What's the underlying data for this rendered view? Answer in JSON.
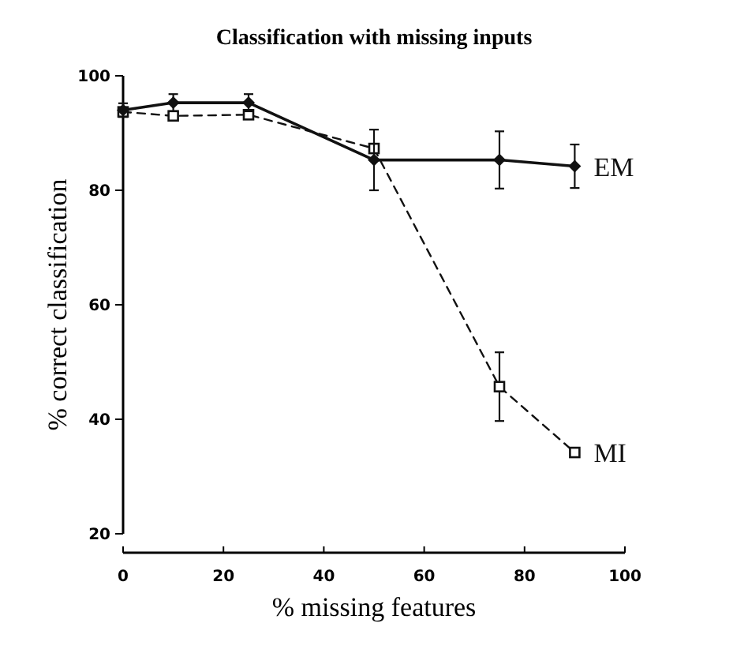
{
  "chart_data": {
    "type": "line",
    "title": "Classification with missing inputs",
    "xlabel": "% missing features",
    "ylabel": "% correct classification",
    "xlim": [
      0,
      100
    ],
    "xticks": [
      0,
      20,
      40,
      60,
      80,
      100
    ],
    "ylim": [
      20,
      100
    ],
    "yticks": [
      20,
      40,
      60,
      80,
      100
    ],
    "series": [
      {
        "name": "EM",
        "color": "#111111",
        "x": [
          0,
          10,
          25,
          50,
          75,
          90
        ],
        "values": [
          94,
          95.3,
          95.3,
          85.3,
          85.3,
          84.2
        ],
        "errors": [
          1.2,
          1.5,
          1.5,
          5.3,
          5,
          3.8
        ],
        "marker": "diamond",
        "line_style": "solid"
      },
      {
        "name": "MI",
        "color": "#111111",
        "x": [
          0,
          10,
          25,
          50,
          75,
          90
        ],
        "values": [
          93.7,
          93,
          93.2,
          87.3,
          45.7,
          34.2
        ],
        "errors": [
          null,
          null,
          null,
          null,
          6,
          null
        ],
        "marker": "square",
        "line_style": "dashed"
      }
    ]
  }
}
